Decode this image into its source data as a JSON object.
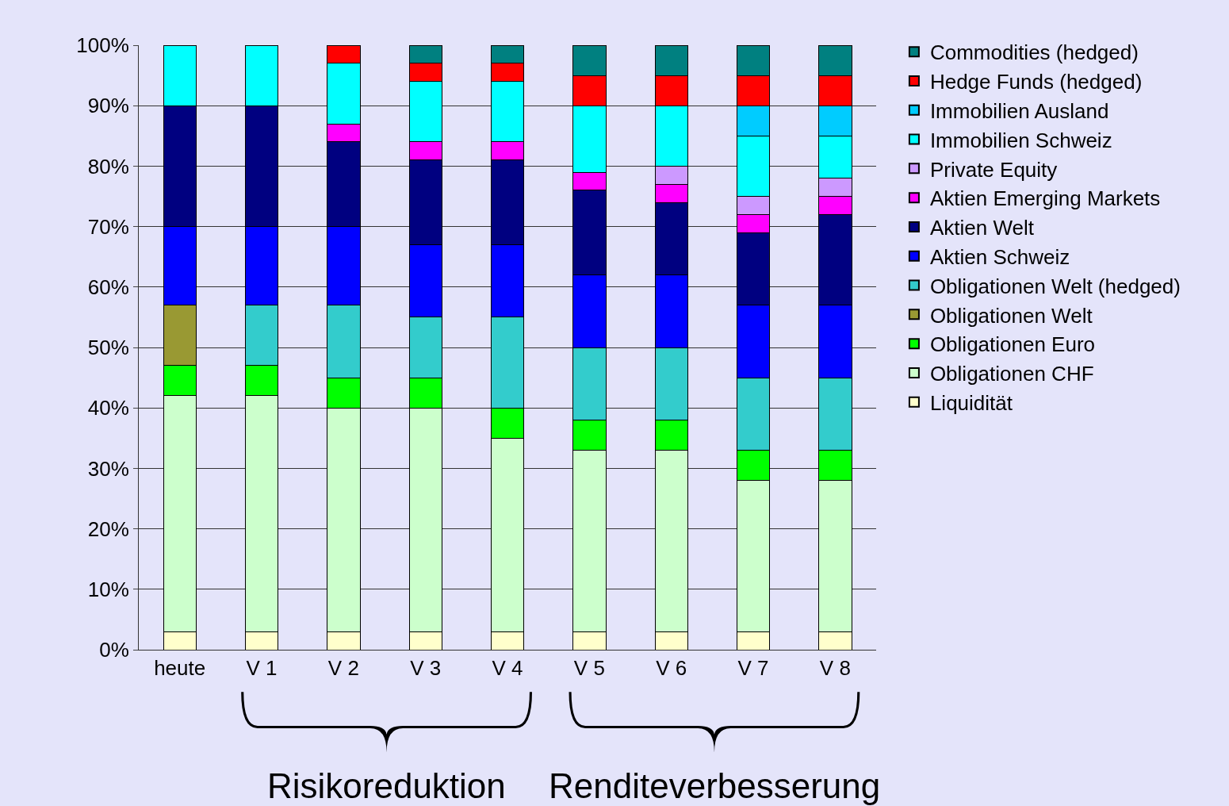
{
  "chart_data": {
    "type": "bar",
    "stacked": true,
    "categories": [
      "heute",
      "V 1",
      "V 2",
      "V 3",
      "V 4",
      "V 5",
      "V 6",
      "V 7",
      "V 8"
    ],
    "series": [
      {
        "name": "Liquidität",
        "color": "#ffffcc",
        "values": [
          3,
          3,
          3,
          3,
          3,
          3,
          3,
          3,
          3
        ]
      },
      {
        "name": "Obligationen CHF",
        "color": "#ccffcc",
        "values": [
          39,
          39,
          37,
          37,
          32,
          30,
          30,
          25,
          25
        ]
      },
      {
        "name": "Obligationen Euro",
        "color": "#00ff00",
        "values": [
          5,
          5,
          5,
          5,
          5,
          5,
          5,
          5,
          5
        ]
      },
      {
        "name": "Obligationen Welt",
        "color": "#999933",
        "values": [
          10,
          0,
          0,
          0,
          0,
          0,
          0,
          0,
          0
        ]
      },
      {
        "name": "Obligationen Welt (hedged)",
        "color": "#33cccc",
        "values": [
          0,
          10,
          12,
          10,
          15,
          12,
          12,
          12,
          12
        ]
      },
      {
        "name": "Aktien Schweiz",
        "color": "#0000ff",
        "values": [
          13,
          13,
          13,
          12,
          12,
          12,
          12,
          12,
          12
        ]
      },
      {
        "name": "Aktien Welt",
        "color": "#000080",
        "values": [
          20,
          20,
          14,
          14,
          14,
          14,
          12,
          12,
          15
        ]
      },
      {
        "name": "Aktien Emerging Markets",
        "color": "#ff00ff",
        "values": [
          0,
          0,
          3,
          3,
          3,
          3,
          3,
          3,
          3
        ]
      },
      {
        "name": "Private Equity",
        "color": "#cc99ff",
        "values": [
          0,
          0,
          0,
          0,
          0,
          0,
          3,
          3,
          3
        ]
      },
      {
        "name": "Immobilien Schweiz",
        "color": "#00ffff",
        "values": [
          10,
          10,
          10,
          10,
          10,
          11,
          10,
          10,
          7
        ]
      },
      {
        "name": "Immobilien Ausland",
        "color": "#00ccff",
        "values": [
          0,
          0,
          0,
          0,
          0,
          0,
          0,
          5,
          5
        ]
      },
      {
        "name": "Hedge Funds (hedged)",
        "color": "#ff0000",
        "values": [
          0,
          0,
          3,
          3,
          3,
          5,
          5,
          5,
          5
        ]
      },
      {
        "name": "Commodities (hedged)",
        "color": "#008080",
        "values": [
          0,
          0,
          0,
          3,
          3,
          5,
          5,
          5,
          5
        ]
      }
    ],
    "ylim": [
      0,
      100
    ],
    "yticks": [
      {
        "value": 0,
        "label": "0%"
      },
      {
        "value": 10,
        "label": "10%"
      },
      {
        "value": 20,
        "label": "20%"
      },
      {
        "value": 30,
        "label": "30%"
      },
      {
        "value": 40,
        "label": "40%"
      },
      {
        "value": 50,
        "label": "50%"
      },
      {
        "value": 60,
        "label": "60%"
      },
      {
        "value": 70,
        "label": "70%"
      },
      {
        "value": 80,
        "label": "80%"
      },
      {
        "value": 90,
        "label": "90%"
      },
      {
        "value": 100,
        "label": "100%"
      }
    ],
    "grid": "y",
    "legend": "right",
    "annotations": [
      "Risikoreduktion",
      "Renditeverbesserung"
    ]
  }
}
